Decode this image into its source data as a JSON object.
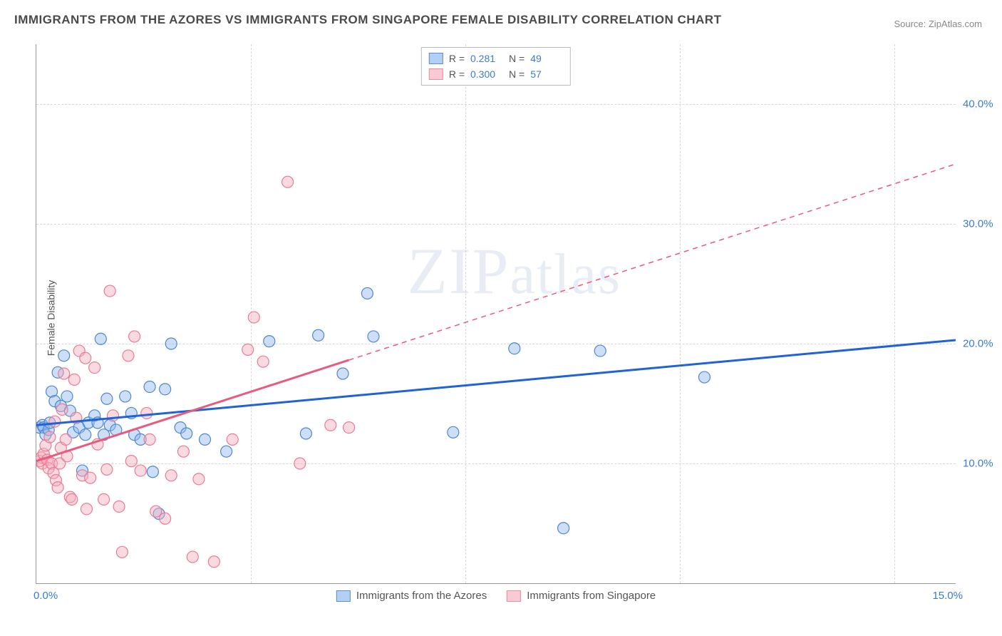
{
  "title": "IMMIGRANTS FROM THE AZORES VS IMMIGRANTS FROM SINGAPORE FEMALE DISABILITY CORRELATION CHART",
  "source_label": "Source: ZipAtlas.com",
  "ylabel": "Female Disability",
  "watermark_prefix": "ZIP",
  "watermark_suffix": "atlas",
  "chart": {
    "type": "scatter",
    "background_color": "#ffffff",
    "grid_color": "#d8d8d8",
    "axis_color": "#999999",
    "tick_color": "#3a7bd5",
    "tick_fontsize": 15,
    "title_fontsize": 17,
    "title_color": "#4a4a4a",
    "label_fontsize": 14,
    "label_color": "#555555",
    "xlim": [
      0,
      15
    ],
    "ylim": [
      0,
      45
    ],
    "xtick_labels": {
      "min": "0.0%",
      "max": "15.0%"
    },
    "ytick_positions": [
      10,
      20,
      30,
      40
    ],
    "ytick_labels": [
      "10.0%",
      "20.0%",
      "30.0%",
      "40.0%"
    ],
    "marker_radius": 8,
    "marker_fill_opacity": 0.45,
    "marker_stroke_width": 1.2,
    "series": [
      {
        "name": "Immigrants from the Azores",
        "color_fill": "#8fb7ea",
        "color_stroke": "#4f86d1",
        "trend_color": "#1f63d6",
        "trend_width": 3,
        "trend_solid_to_x": 15,
        "trend_y_start": 13.2,
        "trend_y_end": 20.3,
        "R": "0.281",
        "N": "49",
        "points": [
          [
            0.05,
            13.0
          ],
          [
            0.1,
            13.2
          ],
          [
            0.12,
            13.0
          ],
          [
            0.15,
            12.4
          ],
          [
            0.2,
            12.8
          ],
          [
            0.22,
            13.4
          ],
          [
            0.25,
            16.0
          ],
          [
            0.3,
            15.2
          ],
          [
            0.35,
            17.6
          ],
          [
            0.4,
            14.8
          ],
          [
            0.45,
            19.0
          ],
          [
            0.5,
            15.6
          ],
          [
            0.55,
            14.4
          ],
          [
            0.6,
            12.6
          ],
          [
            0.7,
            13.0
          ],
          [
            0.75,
            9.4
          ],
          [
            0.8,
            12.4
          ],
          [
            0.85,
            13.4
          ],
          [
            0.95,
            14.0
          ],
          [
            1.0,
            13.4
          ],
          [
            1.05,
            20.4
          ],
          [
            1.1,
            12.4
          ],
          [
            1.15,
            15.4
          ],
          [
            1.2,
            13.2
          ],
          [
            1.3,
            12.8
          ],
          [
            1.45,
            15.6
          ],
          [
            1.55,
            14.2
          ],
          [
            1.6,
            12.4
          ],
          [
            1.7,
            12.0
          ],
          [
            1.85,
            16.4
          ],
          [
            1.9,
            9.3
          ],
          [
            2.0,
            5.8
          ],
          [
            2.1,
            16.2
          ],
          [
            2.2,
            20.0
          ],
          [
            2.35,
            13.0
          ],
          [
            2.45,
            12.5
          ],
          [
            2.75,
            12.0
          ],
          [
            3.1,
            11.0
          ],
          [
            3.8,
            20.2
          ],
          [
            4.4,
            12.5
          ],
          [
            4.6,
            20.7
          ],
          [
            5.0,
            17.5
          ],
          [
            5.4,
            24.2
          ],
          [
            5.5,
            20.6
          ],
          [
            6.8,
            12.6
          ],
          [
            7.8,
            19.6
          ],
          [
            8.6,
            4.6
          ],
          [
            9.2,
            19.4
          ],
          [
            10.9,
            17.2
          ]
        ]
      },
      {
        "name": "Immigrants from Singapore",
        "color_fill": "#f4aebd",
        "color_stroke": "#e77c96",
        "trend_color": "#e85a7e",
        "trend_width": 3,
        "trend_solid_to_x": 5.1,
        "trend_y_start": 10.2,
        "trend_y_end": 35.0,
        "R": "0.300",
        "N": "57",
        "points": [
          [
            0.05,
            10.2
          ],
          [
            0.08,
            10.5
          ],
          [
            0.1,
            10.0
          ],
          [
            0.12,
            10.8
          ],
          [
            0.15,
            11.5
          ],
          [
            0.18,
            10.3
          ],
          [
            0.2,
            9.6
          ],
          [
            0.22,
            12.2
          ],
          [
            0.25,
            10.0
          ],
          [
            0.28,
            9.2
          ],
          [
            0.3,
            13.5
          ],
          [
            0.32,
            8.6
          ],
          [
            0.35,
            8.0
          ],
          [
            0.38,
            10.0
          ],
          [
            0.4,
            11.3
          ],
          [
            0.42,
            14.5
          ],
          [
            0.45,
            17.5
          ],
          [
            0.48,
            12.0
          ],
          [
            0.5,
            10.6
          ],
          [
            0.55,
            7.2
          ],
          [
            0.58,
            7.0
          ],
          [
            0.62,
            17.0
          ],
          [
            0.65,
            13.8
          ],
          [
            0.7,
            19.4
          ],
          [
            0.75,
            9.0
          ],
          [
            0.8,
            18.8
          ],
          [
            0.82,
            6.2
          ],
          [
            0.88,
            8.8
          ],
          [
            0.95,
            18.0
          ],
          [
            1.0,
            11.6
          ],
          [
            1.1,
            7.0
          ],
          [
            1.15,
            9.5
          ],
          [
            1.2,
            24.4
          ],
          [
            1.25,
            14.0
          ],
          [
            1.35,
            6.4
          ],
          [
            1.4,
            2.6
          ],
          [
            1.5,
            19.0
          ],
          [
            1.55,
            10.2
          ],
          [
            1.6,
            20.6
          ],
          [
            1.7,
            9.4
          ],
          [
            1.8,
            14.2
          ],
          [
            1.85,
            12.0
          ],
          [
            1.95,
            6.0
          ],
          [
            2.1,
            5.4
          ],
          [
            2.2,
            9.0
          ],
          [
            2.4,
            11.0
          ],
          [
            2.55,
            2.2
          ],
          [
            2.65,
            8.7
          ],
          [
            2.9,
            1.8
          ],
          [
            3.2,
            12.0
          ],
          [
            3.45,
            19.5
          ],
          [
            3.55,
            22.2
          ],
          [
            3.7,
            18.5
          ],
          [
            4.1,
            33.5
          ],
          [
            4.3,
            10.0
          ],
          [
            4.8,
            13.2
          ],
          [
            5.1,
            13.0
          ]
        ]
      }
    ]
  },
  "legend_top": {
    "r_label": "R =",
    "n_label": "N ="
  },
  "legend_bottom": {
    "series1": "Immigrants from the Azores",
    "series2": "Immigrants from Singapore"
  }
}
